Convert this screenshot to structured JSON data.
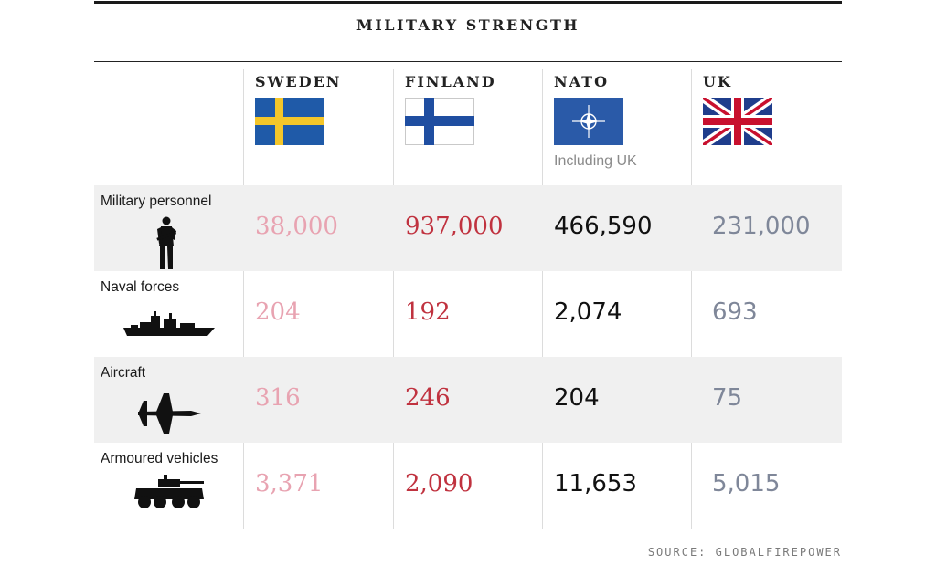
{
  "title": "MILITARY STRENGTH",
  "colors": {
    "sweden": "#e8a3b1",
    "finland": "#c0323f",
    "nato": "#111111",
    "uk": "#7f8799",
    "shade": "#f0f0f0"
  },
  "columns": [
    {
      "key": "sweden",
      "label": "SWEDEN",
      "flag": "sweden-flag-icon"
    },
    {
      "key": "finland",
      "label": "FINLAND",
      "flag": "finland-flag-icon"
    },
    {
      "key": "nato",
      "label": "NATO",
      "flag": "nato-flag-icon",
      "note": "Including UK"
    },
    {
      "key": "uk",
      "label": "UK",
      "flag": "uk-flag-icon"
    }
  ],
  "rows": [
    {
      "label": "Military personnel",
      "icon": "soldier-icon",
      "values": [
        "38,000",
        "937,000",
        "466,590",
        "231,000"
      ]
    },
    {
      "label": "Naval forces",
      "icon": "warship-icon",
      "values": [
        "204",
        "192",
        "2,074",
        "693"
      ]
    },
    {
      "label": "Aircraft",
      "icon": "fighter-jet-icon",
      "values": [
        "316",
        "246",
        "204",
        "75"
      ]
    },
    {
      "label": "Armoured vehicles",
      "icon": "armoured-vehicle-icon",
      "values": [
        "3,371",
        "2,090",
        "11,653",
        "5,015"
      ]
    }
  ],
  "source": "SOURCE: GLOBALFIREPOWER"
}
